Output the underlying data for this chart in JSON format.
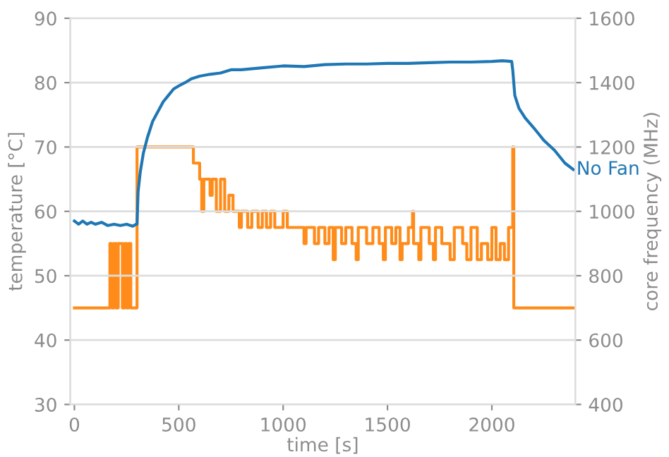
{
  "chart_data": {
    "type": "line",
    "xlabel": "time [s]",
    "ylabel": "temperature [°C]",
    "y2label": "core frequency (MHz)",
    "xlim": [
      -20,
      2400
    ],
    "xticks": [
      0,
      500,
      1000,
      1500,
      2000
    ],
    "ylim": [
      30,
      90
    ],
    "yticks": [
      30,
      40,
      50,
      60,
      70,
      80,
      90
    ],
    "y2lim": [
      400,
      1600
    ],
    "y2ticks": [
      400,
      600,
      800,
      1000,
      1200,
      1400,
      1600
    ],
    "grid": "y",
    "legend": false,
    "series": [
      {
        "name": "No Fan",
        "color": "#1f77b4",
        "x": [
          0,
          20,
          40,
          60,
          80,
          100,
          130,
          160,
          190,
          220,
          250,
          280,
          295,
          300,
          305,
          315,
          330,
          350,
          375,
          400,
          425,
          450,
          475,
          500,
          530,
          560,
          600,
          650,
          700,
          750,
          800,
          900,
          1000,
          1100,
          1200,
          1300,
          1400,
          1500,
          1600,
          1700,
          1800,
          1900,
          2000,
          2050,
          2095,
          2100,
          2110,
          2130,
          2160,
          2200,
          2250,
          2300,
          2350,
          2390
        ],
        "values": [
          58.5,
          58,
          58.5,
          58,
          58.3,
          58,
          58.3,
          57.8,
          58,
          57.8,
          58,
          57.7,
          58,
          58,
          63,
          66,
          69,
          71.5,
          74,
          75.5,
          77,
          78,
          79,
          79.5,
          80,
          80.6,
          81,
          81.3,
          81.5,
          82,
          82,
          82.3,
          82.6,
          82.5,
          82.8,
          82.9,
          82.9,
          83,
          83,
          83.1,
          83.2,
          83.2,
          83.3,
          83.4,
          83.3,
          82,
          78,
          76,
          74.5,
          73,
          71,
          69.5,
          67.5,
          66.5
        ]
      },
      {
        "color": "#ff8c1a",
        "type": "step",
        "axis": "y2",
        "x": [
          0,
          170,
          180,
          190,
          200,
          210,
          230,
          240,
          250,
          260,
          270,
          300,
          570,
          600,
          610,
          620,
          650,
          660,
          680,
          700,
          720,
          740,
          760,
          790,
          800,
          830,
          850,
          880,
          900,
          920,
          940,
          960,
          1000,
          1020,
          1060,
          1100,
          1110,
          1150,
          1170,
          1200,
          1220,
          1240,
          1250,
          1280,
          1300,
          1330,
          1350,
          1360,
          1400,
          1430,
          1460,
          1480,
          1490,
          1520,
          1540,
          1560,
          1570,
          1600,
          1620,
          1625,
          1650,
          1660,
          1700,
          1720,
          1730,
          1760,
          1800,
          1820,
          1860,
          1880,
          1900,
          1930,
          1950,
          1980,
          2000,
          2020,
          2040,
          2060,
          2080,
          2100,
          2105,
          2390
        ],
        "values": [
          700,
          900,
          700,
          900,
          700,
          900,
          700,
          900,
          700,
          900,
          700,
          1200,
          1150,
          1100,
          1000,
          1100,
          1050,
          1100,
          1000,
          1100,
          1000,
          1050,
          1000,
          950,
          1000,
          950,
          1000,
          950,
          1000,
          950,
          1000,
          950,
          1000,
          950,
          950,
          900,
          950,
          900,
          950,
          900,
          950,
          850,
          950,
          900,
          950,
          900,
          850,
          950,
          900,
          950,
          900,
          850,
          950,
          900,
          950,
          850,
          900,
          950,
          1000,
          900,
          850,
          950,
          900,
          850,
          950,
          900,
          850,
          950,
          900,
          850,
          950,
          850,
          900,
          850,
          950,
          850,
          900,
          850,
          950,
          1200,
          700,
          700
        ]
      }
    ]
  }
}
